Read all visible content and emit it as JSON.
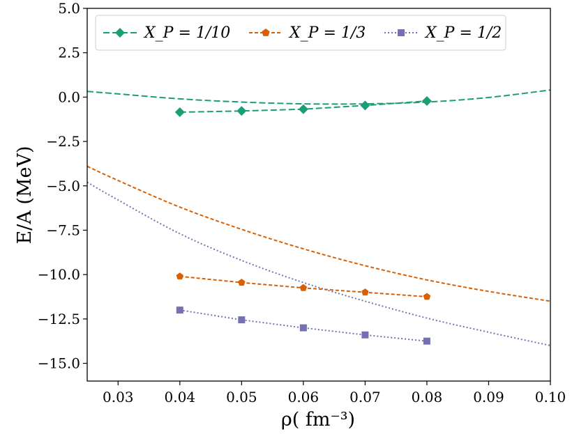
{
  "chart_data": {
    "type": "line",
    "title": "",
    "xlabel": "ρ( fm⁻³)",
    "ylabel": "E/A (MeV)",
    "xlim": [
      0.025,
      0.1
    ],
    "ylim": [
      -16.0,
      5.0
    ],
    "xticks": [
      0.03,
      0.04,
      0.05,
      0.06,
      0.07,
      0.08,
      0.09,
      0.1
    ],
    "xtick_labels": [
      "0.03",
      "0.04",
      "0.05",
      "0.06",
      "0.07",
      "0.08",
      "0.09",
      "0.10"
    ],
    "yticks": [
      5.0,
      2.5,
      0.0,
      -2.5,
      -5.0,
      -7.5,
      -10.0,
      -12.5,
      -15.0
    ],
    "ytick_labels": [
      "5.0",
      "2.5",
      "0.0",
      "−2.5",
      "−5.0",
      "−7.5",
      "−10.0",
      "−12.5",
      "−15.0"
    ],
    "grid": false,
    "legend_position": "top-center",
    "series": [
      {
        "name": "X_P = 1/10",
        "legend": "X_P = 1/10",
        "color": "#1b9e77",
        "marker": "diamond",
        "x": [
          0.04,
          0.05,
          0.06,
          0.07,
          0.08
        ],
        "y": [
          -0.85,
          -0.78,
          -0.68,
          -0.47,
          -0.22
        ],
        "curve_x": [
          0.025,
          0.03,
          0.04,
          0.05,
          0.06,
          0.07,
          0.08,
          0.09,
          0.1
        ],
        "curve_y": [
          0.32,
          0.18,
          -0.1,
          -0.28,
          -0.38,
          -0.38,
          -0.28,
          -0.02,
          0.4
        ]
      },
      {
        "name": "X_P = 1/3",
        "legend": "X_P = 1/3",
        "color": "#d95f02",
        "marker": "pentagon",
        "x": [
          0.04,
          0.05,
          0.06,
          0.07,
          0.08
        ],
        "y": [
          -10.1,
          -10.45,
          -10.75,
          -11.0,
          -11.25
        ],
        "curve_x": [
          0.025,
          0.03,
          0.04,
          0.05,
          0.06,
          0.07,
          0.08,
          0.09,
          0.1
        ],
        "curve_y": [
          -3.9,
          -4.7,
          -6.2,
          -7.45,
          -8.55,
          -9.5,
          -10.3,
          -10.95,
          -11.5
        ]
      },
      {
        "name": "X_P = 1/2",
        "legend": "X_P = 1/2",
        "color": "#7570b3",
        "marker": "square",
        "x": [
          0.04,
          0.05,
          0.06,
          0.07,
          0.08
        ],
        "y": [
          -12.0,
          -12.55,
          -13.0,
          -13.4,
          -13.75
        ],
        "curve_x": [
          0.025,
          0.03,
          0.04,
          0.05,
          0.06,
          0.07,
          0.08,
          0.09,
          0.1
        ],
        "curve_y": [
          -4.8,
          -5.8,
          -7.7,
          -9.2,
          -10.45,
          -11.5,
          -12.45,
          -13.25,
          -14.0
        ]
      }
    ]
  }
}
